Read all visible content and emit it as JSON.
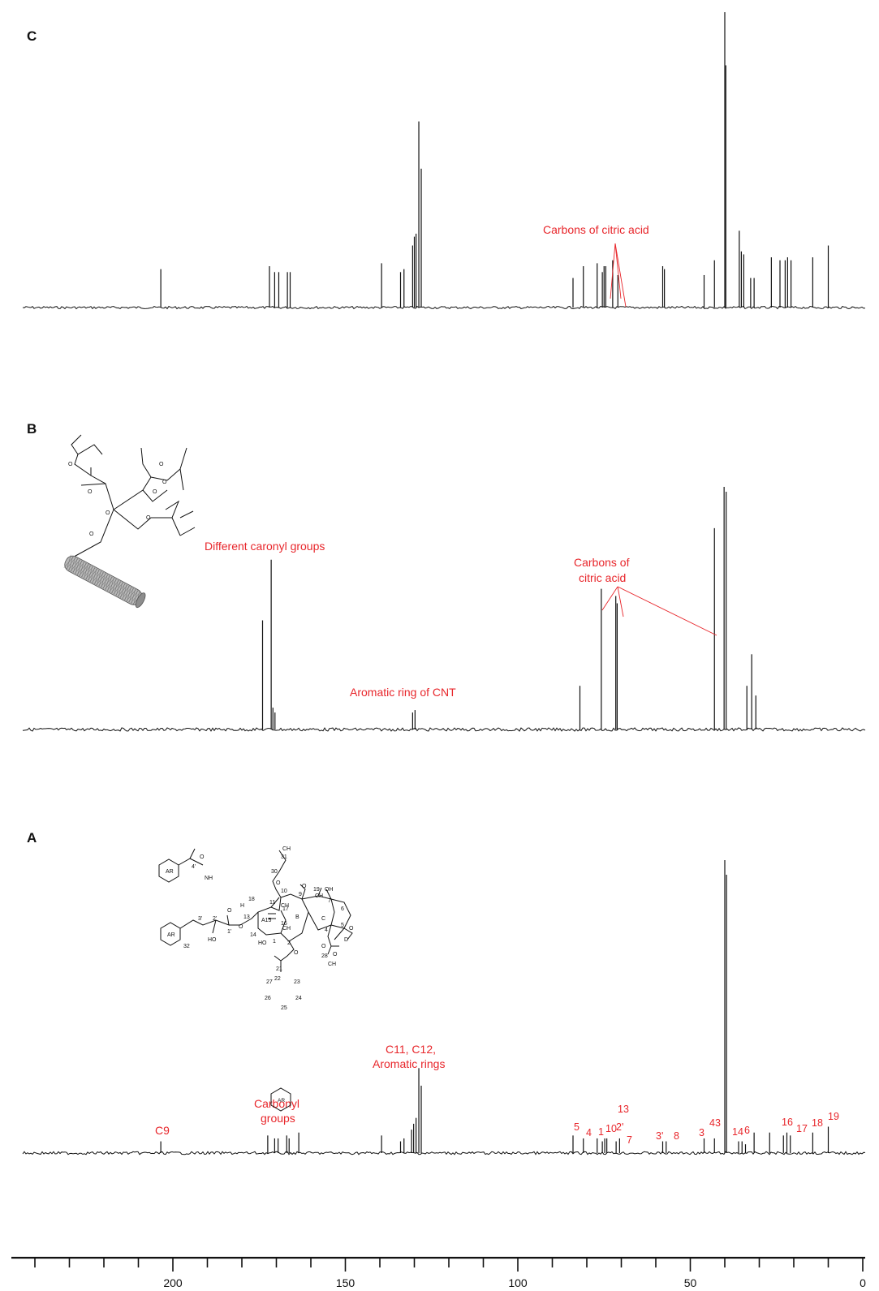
{
  "chart_data": [
    {
      "panel": "C",
      "type": "line",
      "annotations": [
        "Carbons of citric acid"
      ],
      "peaks": [
        {
          "x": 203.5,
          "h": 0.13
        },
        {
          "x": 172.0,
          "h": 0.14
        },
        {
          "x": 170.5,
          "h": 0.12
        },
        {
          "x": 169.3,
          "h": 0.12
        },
        {
          "x": 166.8,
          "h": 0.12
        },
        {
          "x": 166.0,
          "h": 0.12
        },
        {
          "x": 139.5,
          "h": 0.15
        },
        {
          "x": 134.0,
          "h": 0.12
        },
        {
          "x": 133.0,
          "h": 0.13
        },
        {
          "x": 130.5,
          "h": 0.21
        },
        {
          "x": 130.0,
          "h": 0.24
        },
        {
          "x": 129.5,
          "h": 0.25
        },
        {
          "x": 128.7,
          "h": 0.63
        },
        {
          "x": 128.0,
          "h": 0.47
        },
        {
          "x": 84.0,
          "h": 0.1
        },
        {
          "x": 81.0,
          "h": 0.14
        },
        {
          "x": 77.0,
          "h": 0.15
        },
        {
          "x": 75.5,
          "h": 0.12
        },
        {
          "x": 75.0,
          "h": 0.14
        },
        {
          "x": 74.5,
          "h": 0.14
        },
        {
          "x": 72.5,
          "h": 0.16
        },
        {
          "x": 71.0,
          "h": 0.11
        },
        {
          "x": 58.0,
          "h": 0.14
        },
        {
          "x": 57.5,
          "h": 0.13
        },
        {
          "x": 46.0,
          "h": 0.11
        },
        {
          "x": 43.0,
          "h": 0.16
        },
        {
          "x": 40.0,
          "h": 1.0
        },
        {
          "x": 39.7,
          "h": 0.82
        },
        {
          "x": 35.8,
          "h": 0.26
        },
        {
          "x": 35.2,
          "h": 0.19
        },
        {
          "x": 34.5,
          "h": 0.18
        },
        {
          "x": 32.5,
          "h": 0.1
        },
        {
          "x": 31.5,
          "h": 0.1
        },
        {
          "x": 26.5,
          "h": 0.17
        },
        {
          "x": 24.0,
          "h": 0.16
        },
        {
          "x": 22.5,
          "h": 0.16
        },
        {
          "x": 21.8,
          "h": 0.17
        },
        {
          "x": 20.8,
          "h": 0.16
        },
        {
          "x": 14.5,
          "h": 0.17
        },
        {
          "x": 10.0,
          "h": 0.21
        }
      ]
    },
    {
      "panel": "B",
      "type": "line",
      "annotations": [
        "Different caronyl groups",
        "Carbons of citric acid",
        "Aromatic ring of CNT"
      ],
      "peaks": [
        {
          "x": 174.0,
          "h": 0.45
        },
        {
          "x": 171.5,
          "h": 0.7
        },
        {
          "x": 171.0,
          "h": 0.09
        },
        {
          "x": 170.4,
          "h": 0.07
        },
        {
          "x": 130.5,
          "h": 0.07
        },
        {
          "x": 129.8,
          "h": 0.08
        },
        {
          "x": 82.0,
          "h": 0.18
        },
        {
          "x": 75.8,
          "h": 0.58
        },
        {
          "x": 71.6,
          "h": 0.55
        },
        {
          "x": 71.2,
          "h": 0.52
        },
        {
          "x": 43.0,
          "h": 0.83
        },
        {
          "x": 40.2,
          "h": 1.0
        },
        {
          "x": 39.6,
          "h": 0.98
        },
        {
          "x": 33.6,
          "h": 0.18
        },
        {
          "x": 32.2,
          "h": 0.31
        },
        {
          "x": 31.0,
          "h": 0.14
        }
      ]
    },
    {
      "panel": "A",
      "type": "line",
      "xlim": [
        240,
        0
      ],
      "x_ticks": [
        200,
        150,
        100,
        50,
        0
      ],
      "annotations": [
        "C9",
        "Carbonyl groups",
        "C11, C12, Aromatic rings"
      ],
      "peak_labels": [
        "5",
        "4",
        "1",
        "10",
        "2'",
        "13",
        "7",
        "3'",
        "8",
        "3",
        "43",
        "14",
        "6",
        "16",
        "17",
        "18",
        "19"
      ],
      "peaks": [
        {
          "x": 203.5,
          "h": 0.04
        },
        {
          "x": 172.5,
          "h": 0.06
        },
        {
          "x": 170.5,
          "h": 0.05
        },
        {
          "x": 169.5,
          "h": 0.05
        },
        {
          "x": 167.0,
          "h": 0.06
        },
        {
          "x": 166.3,
          "h": 0.05
        },
        {
          "x": 163.5,
          "h": 0.07
        },
        {
          "x": 139.5,
          "h": 0.06
        },
        {
          "x": 134.0,
          "h": 0.04
        },
        {
          "x": 133.0,
          "h": 0.05
        },
        {
          "x": 130.8,
          "h": 0.08
        },
        {
          "x": 130.2,
          "h": 0.1
        },
        {
          "x": 129.5,
          "h": 0.12
        },
        {
          "x": 128.7,
          "h": 0.29
        },
        {
          "x": 128.0,
          "h": 0.23
        },
        {
          "x": 84.0,
          "h": 0.06
        },
        {
          "x": 81.0,
          "h": 0.05
        },
        {
          "x": 77.0,
          "h": 0.05
        },
        {
          "x": 75.5,
          "h": 0.04
        },
        {
          "x": 74.8,
          "h": 0.05
        },
        {
          "x": 74.2,
          "h": 0.05
        },
        {
          "x": 71.5,
          "h": 0.04
        },
        {
          "x": 70.5,
          "h": 0.05
        },
        {
          "x": 58.0,
          "h": 0.04
        },
        {
          "x": 57.0,
          "h": 0.04
        },
        {
          "x": 46.0,
          "h": 0.05
        },
        {
          "x": 43.0,
          "h": 0.05
        },
        {
          "x": 40.0,
          "h": 1.0
        },
        {
          "x": 39.5,
          "h": 0.95
        },
        {
          "x": 36.0,
          "h": 0.04
        },
        {
          "x": 35.0,
          "h": 0.04
        },
        {
          "x": 34.0,
          "h": 0.03
        },
        {
          "x": 31.5,
          "h": 0.07
        },
        {
          "x": 27.0,
          "h": 0.07
        },
        {
          "x": 23.0,
          "h": 0.06
        },
        {
          "x": 22.0,
          "h": 0.07
        },
        {
          "x": 21.0,
          "h": 0.06
        },
        {
          "x": 14.5,
          "h": 0.07
        },
        {
          "x": 10.0,
          "h": 0.09
        }
      ]
    }
  ],
  "colors": {
    "trace": "#111111",
    "annotation": "#e8262b",
    "cnt": "#9a9a9a"
  }
}
